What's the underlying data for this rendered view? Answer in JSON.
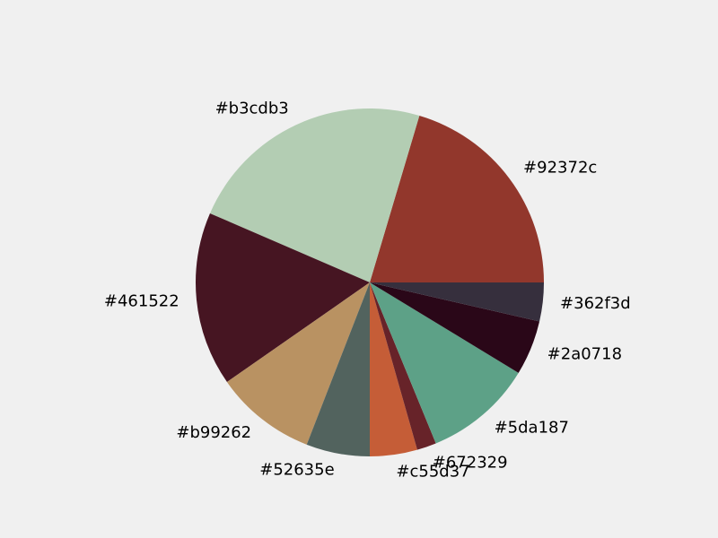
{
  "chart_data": {
    "type": "pie",
    "title": "",
    "start_angle_deg": 0,
    "direction": "counterclockwise",
    "slices": [
      {
        "label": "#92372c",
        "value": 20.4,
        "color": "#92372c"
      },
      {
        "label": "#b3cdb3",
        "value": 23.1,
        "color": "#b3cdb3"
      },
      {
        "label": "#461522",
        "value": 16.2,
        "color": "#461522"
      },
      {
        "label": "#b99262",
        "value": 9.4,
        "color": "#b99262"
      },
      {
        "label": "#52635e",
        "value": 5.9,
        "color": "#52635e"
      },
      {
        "label": "#c55d37",
        "value": 4.4,
        "color": "#c55d37"
      },
      {
        "label": "#672329",
        "value": 1.8,
        "color": "#672329"
      },
      {
        "label": "#5da187",
        "value": 10.1,
        "color": "#5da187"
      },
      {
        "label": "#2a0718",
        "value": 5.1,
        "color": "#2a0718"
      },
      {
        "label": "#362f3d",
        "value": 3.6,
        "color": "#362f3d"
      }
    ]
  }
}
